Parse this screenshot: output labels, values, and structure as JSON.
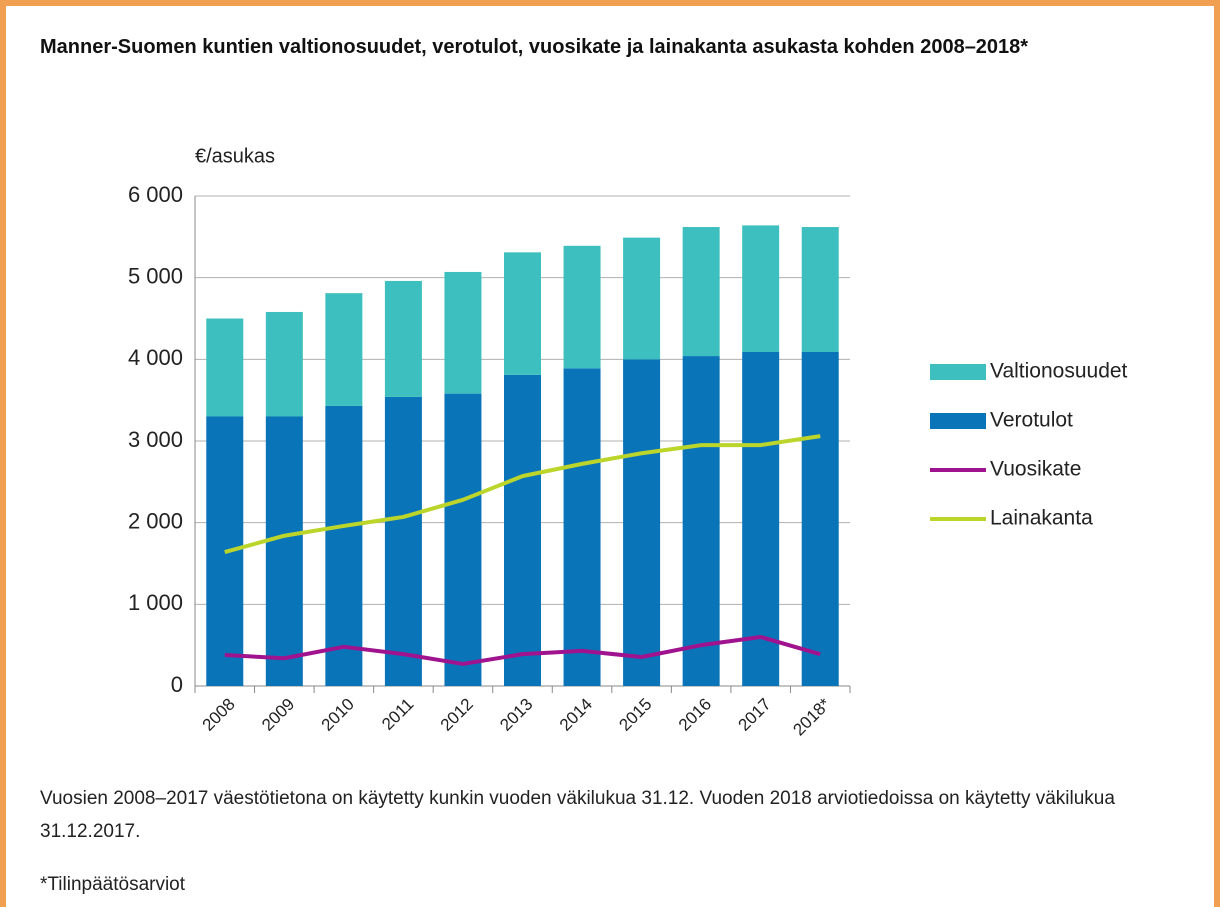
{
  "chart_data": {
    "type": "bar",
    "stacked": true,
    "title": "Manner-Suomen kuntien valtionosuudet, verotulot, vuosikate ja lainakanta asukasta kohden 2008–2018*",
    "y_label": "€/asukas",
    "categories": [
      "2008",
      "2009",
      "2010",
      "2011",
      "2012",
      "2013",
      "2014",
      "2015",
      "2016",
      "2017",
      "2018*"
    ],
    "series": [
      {
        "name": "Valtionosuudet",
        "kind": "bar",
        "color": "#3cbfbe",
        "values": [
          1200,
          1280,
          1380,
          1420,
          1490,
          1500,
          1500,
          1490,
          1580,
          1550,
          1530
        ]
      },
      {
        "name": "Verotulot",
        "kind": "bar",
        "color": "#0a74b9",
        "values": [
          3300,
          3300,
          3430,
          3540,
          3580,
          3810,
          3890,
          4000,
          4040,
          4090,
          4090
        ]
      },
      {
        "name": "Vuosikate",
        "kind": "line",
        "color": "#a0138e",
        "values": [
          380,
          340,
          480,
          390,
          270,
          390,
          430,
          355,
          500,
          600,
          390
        ]
      },
      {
        "name": "Lainakanta",
        "kind": "line",
        "color": "#bcd52a",
        "values": [
          1640,
          1840,
          1960,
          2070,
          2280,
          2570,
          2720,
          2850,
          2950,
          2950,
          3060
        ]
      }
    ],
    "ylim": [
      0,
      6000
    ],
    "yticks": [
      0,
      {
        "value": 1000,
        "label": "1 000"
      },
      {
        "value": 2000,
        "label": "2 000"
      },
      {
        "value": 3000,
        "label": "3 000"
      },
      {
        "value": 4000,
        "label": "4 000"
      },
      {
        "value": 5000,
        "label": "5 000"
      },
      {
        "value": 6000,
        "label": "6 000"
      }
    ],
    "grid": true,
    "legend": "right"
  },
  "notes": [
    "Vuosien 2008–2017 väestötietona on käytetty kunkin vuoden väkilukua 31.12. Vuoden 2018 arviotiedoissa on käytetty väkilukua 31.12.2017.",
    "*Tilinpäätösarviot"
  ]
}
